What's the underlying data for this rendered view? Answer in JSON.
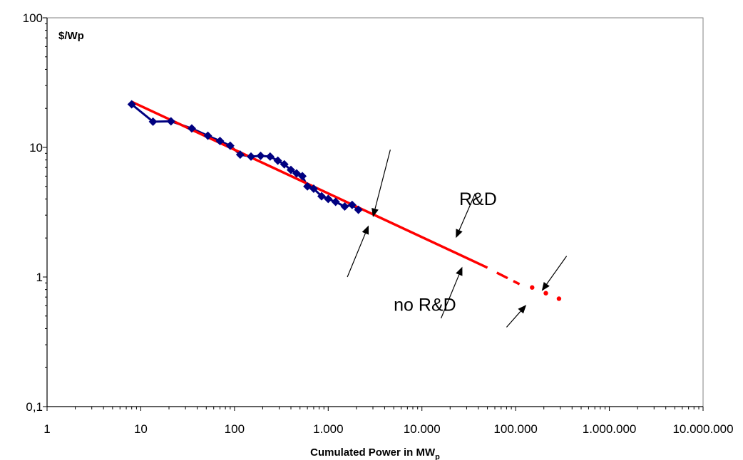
{
  "chart_data": {
    "type": "line",
    "x_scale": "log",
    "y_scale": "log",
    "xlim": [
      1,
      10000000
    ],
    "ylim": [
      0.1,
      100
    ],
    "x_ticks": [
      1,
      10,
      100,
      1000,
      10000,
      100000,
      1000000,
      10000000
    ],
    "x_tick_labels": [
      "1",
      "10",
      "100",
      "1.000",
      "10.000",
      "100.000",
      "1.000.000",
      "10.000.000"
    ],
    "y_ticks": [
      0.1,
      1,
      10,
      100
    ],
    "y_tick_labels": [
      "0,1",
      "1",
      "10",
      "100"
    ],
    "ylabel": "$/Wp",
    "xlabel": "Cumulated Power in MW",
    "xlabel_subscript": "p",
    "grid": false,
    "legend": "none",
    "series": [
      {
        "kind": "markers-line",
        "color": "#000080",
        "marker": "diamond",
        "points": [
          [
            8,
            21.5
          ],
          [
            13.5,
            15.8
          ],
          [
            21,
            15.9
          ],
          [
            35,
            14
          ],
          [
            52,
            12.3
          ],
          [
            70,
            11.2
          ],
          [
            90,
            10.3
          ],
          [
            115,
            8.8
          ],
          [
            150,
            8.5
          ],
          [
            190,
            8.6
          ],
          [
            240,
            8.5
          ],
          [
            290,
            7.9
          ],
          [
            340,
            7.4
          ],
          [
            400,
            6.7
          ],
          [
            460,
            6.3
          ],
          [
            530,
            6.0
          ],
          [
            600,
            5.0
          ],
          [
            700,
            4.8
          ],
          [
            850,
            4.2
          ],
          [
            1000,
            4.0
          ],
          [
            1200,
            3.8
          ],
          [
            1500,
            3.5
          ],
          [
            1800,
            3.6
          ],
          [
            2100,
            3.3
          ]
        ]
      },
      {
        "kind": "trend-solid",
        "color": "#ff0000",
        "points": [
          [
            8,
            22.5
          ],
          [
            50000,
            1.18
          ]
        ]
      },
      {
        "kind": "trend-dashed",
        "color": "#ff0000",
        "points": [
          [
            63000,
            1.08
          ],
          [
            110000,
            0.88
          ]
        ]
      },
      {
        "kind": "trend-dots",
        "color": "#ff0000",
        "points": [
          [
            150000,
            0.83
          ],
          [
            210000,
            0.75
          ],
          [
            290000,
            0.68
          ]
        ]
      }
    ],
    "annotations": [
      {
        "text": "R&D",
        "at": [
          25000,
          3.6
        ]
      },
      {
        "text": "no R&D",
        "at": [
          5000,
          0.55
        ]
      }
    ],
    "arrows": [
      {
        "from": [
          4600,
          9.6
        ],
        "to": [
          3000,
          2.9
        ]
      },
      {
        "from": [
          1600,
          1.0
        ],
        "to": [
          2700,
          2.5
        ]
      },
      {
        "from": [
          37000,
          4.4
        ],
        "to": [
          23000,
          2.0
        ]
      },
      {
        "from": [
          16000,
          0.48
        ],
        "to": [
          27000,
          1.2
        ]
      },
      {
        "from": [
          350000,
          1.45
        ],
        "to": [
          190000,
          0.78
        ]
      },
      {
        "from": [
          80000,
          0.41
        ],
        "to": [
          130000,
          0.61
        ]
      }
    ],
    "colors": {
      "data_series": "#000080",
      "trend": "#ff0000",
      "axis": "#000000"
    }
  }
}
